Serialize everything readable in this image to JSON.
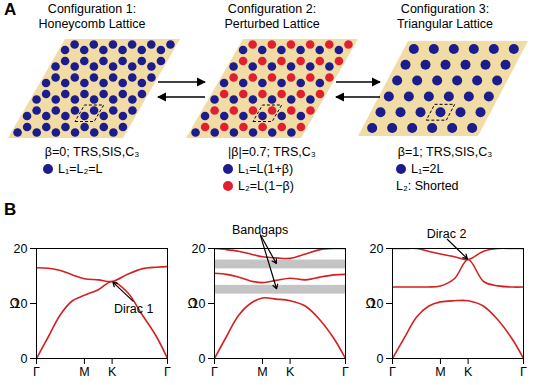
{
  "diagram": {
    "panel_label": "A",
    "configurations": [
      {
        "title": "Configuration 1:",
        "subtitle": "Honeycomb Lattice",
        "lattice": "honeycomb",
        "properties": "β=0; TRS,SIS,C₃",
        "legend": [
          {
            "color": "#1c1c8c",
            "label": "L₁=L₂=L"
          }
        ]
      },
      {
        "title": "Configuration 2:",
        "subtitle": "Perturbed Lattice",
        "lattice": "perturbed",
        "properties": "|β|=0.7; TRS,C₃",
        "legend": [
          {
            "color": "#1c1c8c",
            "label": "L₁=L(1+β)"
          },
          {
            "color": "#e0202e",
            "label": "L₂=L(1−β)"
          }
        ]
      },
      {
        "title": "Configuration 3:",
        "subtitle": "Triangular Lattice",
        "lattice": "triangular",
        "properties": "β=1; TRS,SIS,C₃",
        "legend": [
          {
            "color": "#1c1c8c",
            "label": "L₁=2L"
          },
          {
            "label": "L₂: Shorted"
          }
        ]
      }
    ]
  },
  "panel_label_B": "B",
  "chart_data": [
    {
      "type": "line",
      "ylabel": "Ω",
      "xlim": [
        0,
        2.732
      ],
      "xticks": [
        {
          "value": 0,
          "label": "Γ"
        },
        {
          "value": 1,
          "label": "M"
        },
        {
          "value": 1.577,
          "label": "K"
        },
        {
          "value": 2.732,
          "label": "Γ"
        }
      ],
      "ylim": [
        0,
        20
      ],
      "yticks": [
        0,
        10,
        20
      ],
      "x": [
        0,
        0.25,
        0.5,
        0.75,
        1,
        1.29,
        1.577,
        1.9,
        2.2,
        2.5,
        2.732
      ],
      "series": [
        {
          "color": "#d42020",
          "values": [
            0,
            4,
            8,
            10.5,
            11.5,
            12.5,
            14,
            12,
            8,
            4,
            0
          ]
        },
        {
          "color": "#d42020",
          "values": [
            16.5,
            16.4,
            16,
            15.2,
            14.5,
            14.3,
            14,
            15.3,
            16.3,
            16.6,
            16.7
          ]
        }
      ],
      "annotations": [
        {
          "text": "Dirac 1",
          "points": [
            [
              1.577,
              14
            ]
          ]
        }
      ]
    },
    {
      "type": "line",
      "ylabel": "Ω",
      "xlim": [
        0,
        2.732
      ],
      "xticks": [
        {
          "value": 0,
          "label": "Γ"
        },
        {
          "value": 1,
          "label": "M"
        },
        {
          "value": 1.577,
          "label": "K"
        },
        {
          "value": 2.732,
          "label": "Γ"
        }
      ],
      "ylim": [
        0,
        20
      ],
      "yticks": [
        0,
        10,
        20
      ],
      "x": [
        0,
        0.25,
        0.5,
        0.75,
        1,
        1.29,
        1.577,
        1.9,
        2.2,
        2.5,
        2.732
      ],
      "bandgaps": [
        [
          11.7,
          13.3
        ],
        [
          16.3,
          17.9
        ]
      ],
      "series": [
        {
          "color": "#d42020",
          "values": [
            0,
            4,
            7.8,
            10,
            11,
            10.8,
            10.5,
            9.5,
            7,
            3.5,
            0
          ]
        },
        {
          "color": "#d42020",
          "values": [
            15.5,
            15.3,
            14.8,
            14.1,
            13.8,
            14.2,
            14.6,
            14.3,
            14.8,
            15.2,
            15.3
          ]
        },
        {
          "color": "#d42020",
          "values": [
            20,
            19.8,
            19.5,
            19,
            18.5,
            18.3,
            18.2,
            19,
            19.8,
            20,
            20
          ]
        }
      ],
      "annotations": [
        {
          "text": "Bandgaps",
          "points": [
            [
              1.3,
              17.1
            ],
            [
              1.3,
              12.5
            ]
          ]
        }
      ]
    },
    {
      "type": "line",
      "ylabel": "Ω",
      "xlim": [
        0,
        2.732
      ],
      "xticks": [
        {
          "value": 0,
          "label": "Γ"
        },
        {
          "value": 1,
          "label": "M"
        },
        {
          "value": 1.577,
          "label": "K"
        },
        {
          "value": 2.732,
          "label": "Γ"
        }
      ],
      "ylim": [
        0,
        20
      ],
      "yticks": [
        0,
        10,
        20
      ],
      "x": [
        0,
        0.25,
        0.5,
        0.75,
        1,
        1.29,
        1.577,
        1.9,
        2.2,
        2.5,
        2.732
      ],
      "series": [
        {
          "color": "#d42020",
          "values": [
            0,
            3.8,
            7.5,
            9.5,
            10.3,
            10.5,
            10.5,
            9.5,
            7,
            3.5,
            0
          ]
        },
        {
          "color": "#d42020",
          "values": [
            13,
            13,
            13,
            13,
            13.2,
            14.5,
            18,
            14,
            13.2,
            13,
            13
          ]
        },
        {
          "color": "#d42020",
          "values": [
            20,
            20,
            20,
            19.5,
            19,
            18.5,
            18,
            19.5,
            20,
            20,
            20
          ]
        }
      ],
      "annotations": [
        {
          "text": "Dirac 2",
          "points": [
            [
              1.577,
              18
            ]
          ]
        }
      ]
    }
  ]
}
